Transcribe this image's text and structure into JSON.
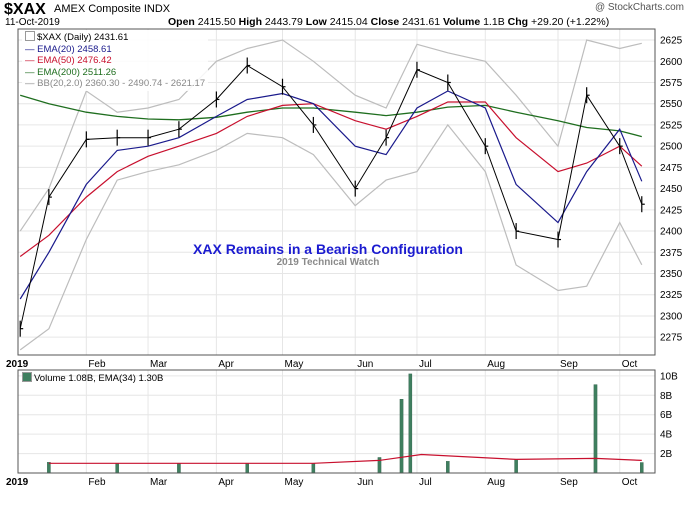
{
  "header": {
    "symbol": "$XAX",
    "name": "AMEX Composite INDX",
    "date": "11-Oct-2019",
    "open_label": "Open",
    "open": "2415.50",
    "high_label": "High",
    "high": "2443.79",
    "low_label": "Low",
    "low": "2415.04",
    "close_label": "Close",
    "close": "2431.61",
    "volume_label": "Volume",
    "volume": "1.1B",
    "chg_label": "Chg",
    "chg": "+29.20 (+1.22%)",
    "watermark": "@ StockCharts.com"
  },
  "legend": {
    "price": "$XAX (Daily) 2431.61",
    "ema20": "EMA(20) 2458.61",
    "ema50": "EMA(50) 2476.42",
    "ema200": "EMA(200) 2511.26",
    "bb": "BB(20,2.0) 2360.30 - 2490.74 - 2621.17",
    "volume": "Volume 1.08B, EMA(34) 1.30B"
  },
  "annotation": {
    "title": "XAX Remains in a Bearish Configuration",
    "subtitle": "2019 Technical Watch"
  },
  "colors": {
    "price": "#000000",
    "ema20": "#1a1a8c",
    "ema50": "#c8102e",
    "ema200": "#1f6e1f",
    "bb": "#bdbdbd",
    "bb_mid": "#bdbdbd",
    "volume_bar": "#3f7f5f",
    "volume_ema": "#c8102e",
    "grid": "#e6e6e6",
    "annotation": "#1b1bd0"
  },
  "chart_data": {
    "type": "line",
    "title": "",
    "xlabel": "",
    "ylabel": "",
    "ylim": [
      2254,
      2638
    ],
    "yticks": [
      2275,
      2300,
      2325,
      2350,
      2375,
      2400,
      2425,
      2450,
      2475,
      2500,
      2525,
      2550,
      2575,
      2600,
      2625
    ],
    "x_axis": {
      "labels": [
        "2019",
        "Feb",
        "Mar",
        "Apr",
        "May",
        "Jun",
        "Jul",
        "Aug",
        "Sep",
        "Oct"
      ],
      "dates": [
        "2019-01-02",
        "2019-02-01",
        "2019-03-01",
        "2019-04-01",
        "2019-05-01",
        "2019-06-03",
        "2019-07-01",
        "2019-08-01",
        "2019-09-03",
        "2019-10-01"
      ],
      "range": [
        "2019-01-01",
        "2019-10-17"
      ]
    },
    "grid": true,
    "legend_position": "top-left",
    "series": [
      {
        "name": "$XAX (Daily)",
        "dates": [
          "2019-01-02",
          "2019-01-15",
          "2019-02-01",
          "2019-02-15",
          "2019-03-01",
          "2019-03-15",
          "2019-04-01",
          "2019-04-15",
          "2019-05-01",
          "2019-05-15",
          "2019-06-03",
          "2019-06-17",
          "2019-07-01",
          "2019-07-15",
          "2019-08-01",
          "2019-08-15",
          "2019-09-03",
          "2019-09-16",
          "2019-10-01",
          "2019-10-11"
        ],
        "values": [
          2285,
          2440,
          2508,
          2510,
          2510,
          2520,
          2555,
          2595,
          2570,
          2525,
          2450,
          2510,
          2590,
          2575,
          2500,
          2400,
          2390,
          2560,
          2500,
          2431.61
        ]
      },
      {
        "name": "EMA(20)",
        "dates": [
          "2019-01-02",
          "2019-01-15",
          "2019-02-01",
          "2019-02-15",
          "2019-03-01",
          "2019-03-15",
          "2019-04-01",
          "2019-04-15",
          "2019-05-01",
          "2019-05-15",
          "2019-06-03",
          "2019-06-17",
          "2019-07-01",
          "2019-07-15",
          "2019-08-01",
          "2019-08-15",
          "2019-09-03",
          "2019-09-16",
          "2019-10-01",
          "2019-10-11"
        ],
        "values": [
          2320,
          2375,
          2455,
          2495,
          2500,
          2510,
          2535,
          2555,
          2562,
          2550,
          2500,
          2490,
          2545,
          2565,
          2545,
          2455,
          2410,
          2470,
          2520,
          2458.61
        ]
      },
      {
        "name": "EMA(50)",
        "dates": [
          "2019-01-02",
          "2019-01-15",
          "2019-02-01",
          "2019-02-15",
          "2019-03-01",
          "2019-03-15",
          "2019-04-01",
          "2019-04-15",
          "2019-05-01",
          "2019-05-15",
          "2019-06-03",
          "2019-06-17",
          "2019-07-01",
          "2019-07-15",
          "2019-08-01",
          "2019-08-15",
          "2019-09-03",
          "2019-09-16",
          "2019-10-01",
          "2019-10-11"
        ],
        "values": [
          2370,
          2395,
          2440,
          2470,
          2488,
          2500,
          2515,
          2535,
          2548,
          2550,
          2530,
          2520,
          2535,
          2552,
          2552,
          2510,
          2470,
          2480,
          2500,
          2476.42
        ]
      },
      {
        "name": "EMA(200)",
        "dates": [
          "2019-01-02",
          "2019-01-15",
          "2019-02-01",
          "2019-02-15",
          "2019-03-01",
          "2019-03-15",
          "2019-04-01",
          "2019-04-15",
          "2019-05-01",
          "2019-05-15",
          "2019-06-03",
          "2019-06-17",
          "2019-07-01",
          "2019-07-15",
          "2019-08-01",
          "2019-08-15",
          "2019-09-03",
          "2019-09-16",
          "2019-10-01",
          "2019-10-11"
        ],
        "values": [
          2560,
          2550,
          2540,
          2535,
          2532,
          2531,
          2534,
          2540,
          2545,
          2545,
          2540,
          2536,
          2540,
          2546,
          2548,
          2540,
          2530,
          2522,
          2518,
          2511.26
        ]
      },
      {
        "name": "BB upper",
        "dates": [
          "2019-01-02",
          "2019-01-15",
          "2019-02-01",
          "2019-02-15",
          "2019-03-01",
          "2019-03-15",
          "2019-04-01",
          "2019-04-15",
          "2019-05-01",
          "2019-05-15",
          "2019-06-03",
          "2019-06-17",
          "2019-07-01",
          "2019-07-15",
          "2019-08-01",
          "2019-08-15",
          "2019-09-03",
          "2019-09-16",
          "2019-10-01",
          "2019-10-11"
        ],
        "values": [
          2400,
          2450,
          2565,
          2540,
          2545,
          2555,
          2600,
          2615,
          2625,
          2600,
          2560,
          2545,
          2620,
          2610,
          2600,
          2560,
          2500,
          2625,
          2615,
          2621.17
        ]
      },
      {
        "name": "BB lower",
        "dates": [
          "2019-01-02",
          "2019-01-15",
          "2019-02-01",
          "2019-02-15",
          "2019-03-01",
          "2019-03-15",
          "2019-04-01",
          "2019-04-15",
          "2019-05-01",
          "2019-05-15",
          "2019-06-03",
          "2019-06-17",
          "2019-07-01",
          "2019-07-15",
          "2019-08-01",
          "2019-08-15",
          "2019-09-03",
          "2019-09-16",
          "2019-10-01",
          "2019-10-11"
        ],
        "values": [
          2260,
          2285,
          2390,
          2460,
          2470,
          2478,
          2495,
          2515,
          2510,
          2490,
          2430,
          2460,
          2470,
          2525,
          2470,
          2360,
          2330,
          2335,
          2410,
          2360.3
        ]
      }
    ],
    "volume": {
      "name": "Volume",
      "unit": "B",
      "ylim": [
        0,
        10.6
      ],
      "yticks": [
        2,
        4,
        6,
        8,
        10
      ],
      "ytick_labels": [
        "2B",
        "4B",
        "6B",
        "8B",
        "10B"
      ],
      "dates": [
        "2019-01-15",
        "2019-02-15",
        "2019-03-15",
        "2019-04-15",
        "2019-05-15",
        "2019-06-14",
        "2019-06-24",
        "2019-06-28",
        "2019-07-15",
        "2019-08-15",
        "2019-09-20",
        "2019-10-11"
      ],
      "values": [
        1.1,
        1.0,
        1.0,
        1.0,
        1.0,
        1.6,
        7.6,
        10.2,
        1.2,
        1.4,
        9.1,
        1.08
      ],
      "ema34_dates": [
        "2019-01-15",
        "2019-05-15",
        "2019-06-14",
        "2019-07-03",
        "2019-08-15",
        "2019-09-20",
        "2019-10-11"
      ],
      "ema34_values": [
        1.0,
        1.0,
        1.3,
        1.9,
        1.4,
        1.5,
        1.3
      ]
    }
  }
}
